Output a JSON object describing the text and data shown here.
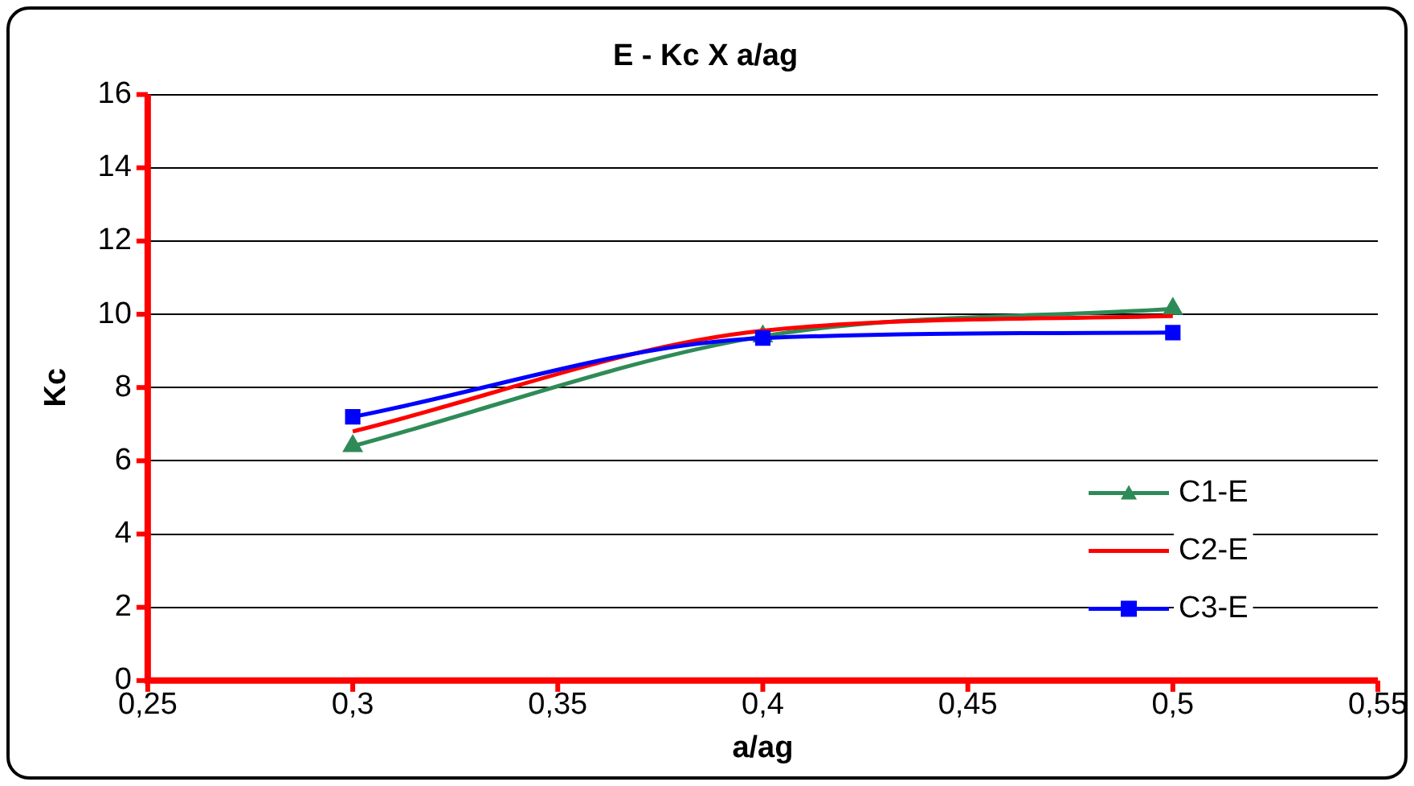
{
  "chart_data": {
    "type": "line",
    "title": "E - Kc X a/ag",
    "xlabel": "a/ag",
    "ylabel": "Kc",
    "x": [
      0.3,
      0.4,
      0.5
    ],
    "series": [
      {
        "name": "C1-E",
        "color": "#2e8b57",
        "marker": "triangle",
        "values": [
          6.4,
          9.4,
          10.15
        ]
      },
      {
        "name": "C2-E",
        "color": "#ff0000",
        "marker": "none",
        "values": [
          6.8,
          9.55,
          9.95
        ]
      },
      {
        "name": "C3-E",
        "color": "#0000ff",
        "marker": "square",
        "values": [
          7.2,
          9.35,
          9.5
        ]
      }
    ],
    "xlim": [
      0.25,
      0.55
    ],
    "xticks": [
      {
        "value": 0.25,
        "label": "0,25"
      },
      {
        "value": 0.3,
        "label": "0,3"
      },
      {
        "value": 0.35,
        "label": "0,35"
      },
      {
        "value": 0.4,
        "label": "0,4"
      },
      {
        "value": 0.45,
        "label": "0,45"
      },
      {
        "value": 0.5,
        "label": "0,5"
      },
      {
        "value": 0.55,
        "label": "0,55"
      }
    ],
    "ylim": [
      0,
      16
    ],
    "yticks": [
      0,
      2,
      4,
      6,
      8,
      10,
      12,
      14,
      16
    ],
    "grid": "y",
    "legend": "right"
  }
}
